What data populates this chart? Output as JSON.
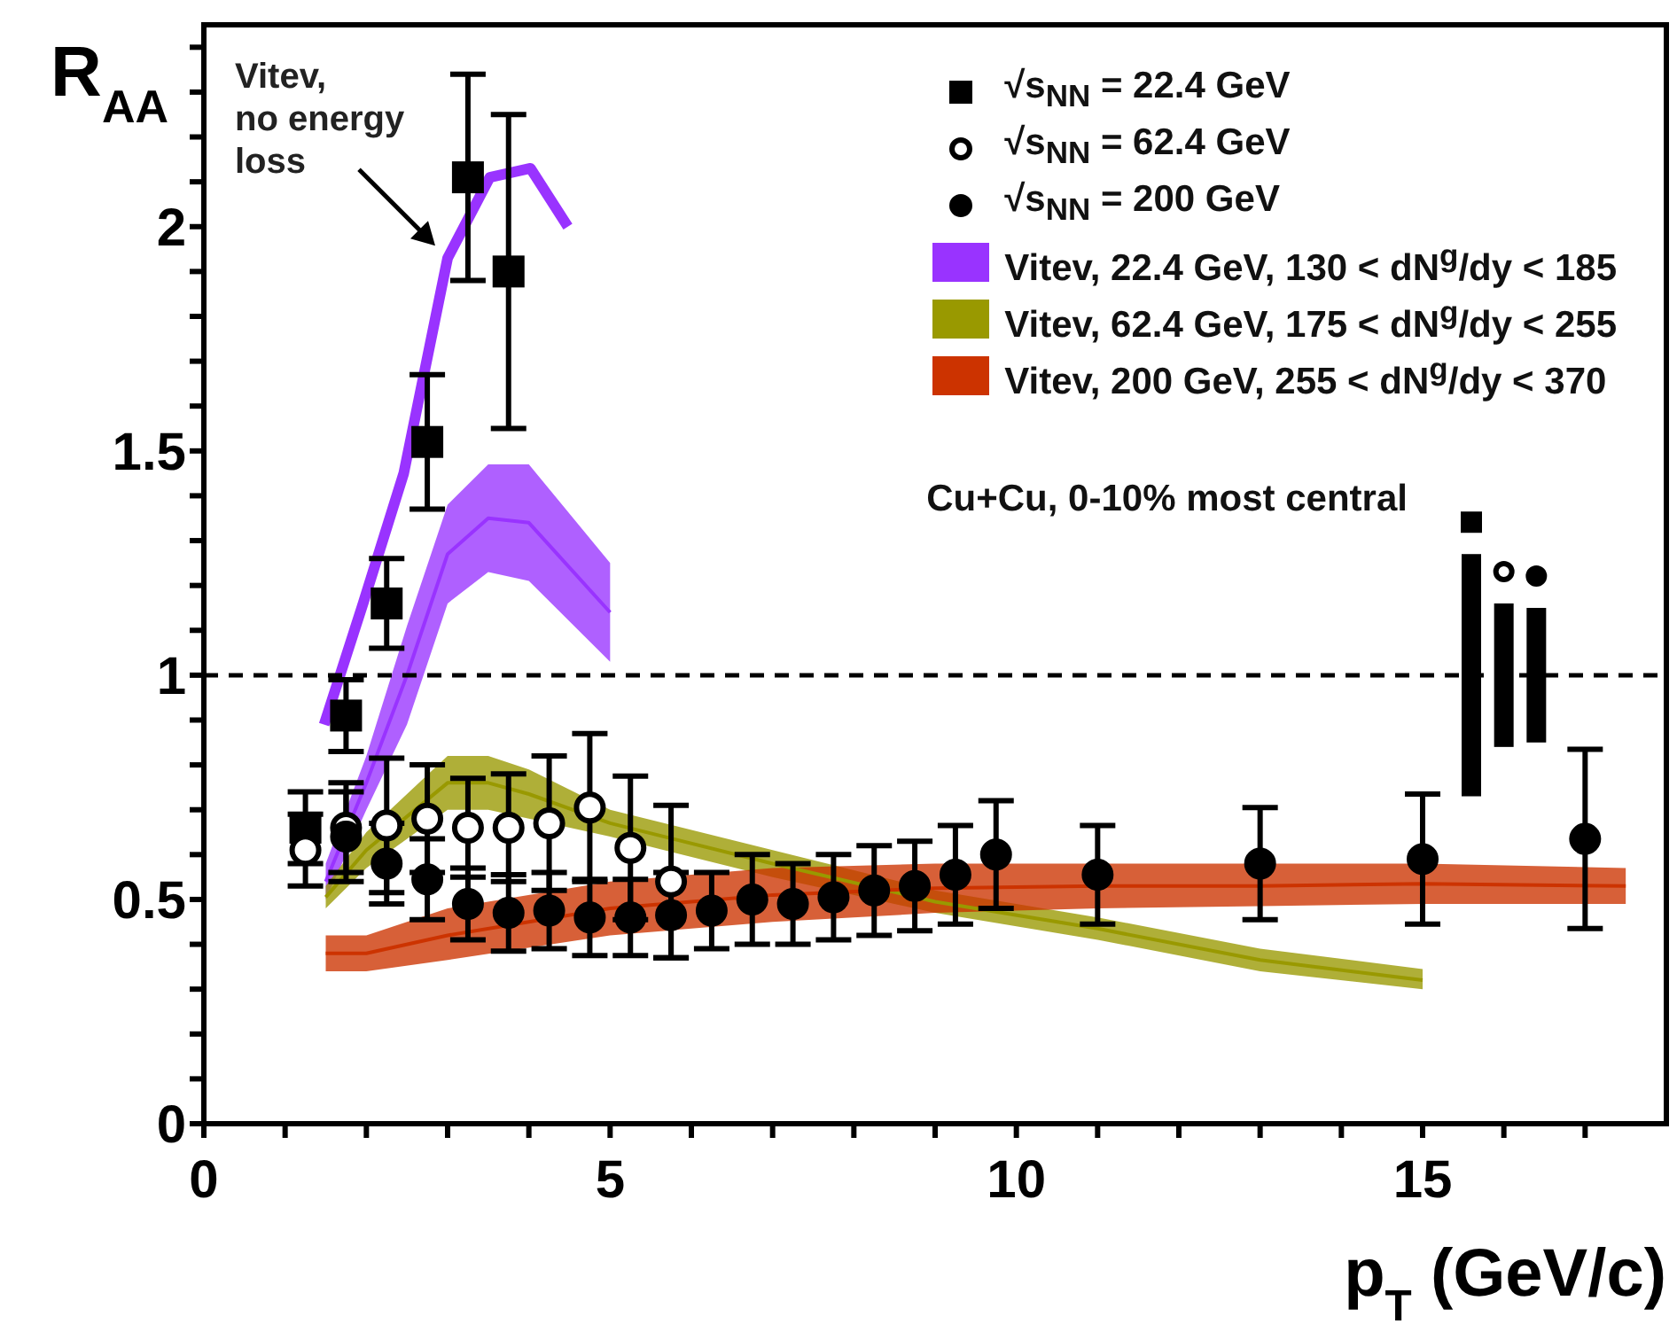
{
  "chart_data": {
    "type": "scatter",
    "xlabel": "p$_{T}$ (GeV/c)",
    "ylabel": "R$_{AA}$",
    "xlim": [
      0,
      18
    ],
    "ylim": [
      0,
      2.45
    ],
    "xticks": [
      0,
      {
        "value": 1,
        "label": null
      },
      {
        "value": 2,
        "label": null
      },
      {
        "value": 3,
        "label": null
      },
      {
        "value": 4,
        "label": null
      },
      5,
      {
        "value": 6,
        "label": null
      },
      {
        "value": 7,
        "label": null
      },
      {
        "value": 8,
        "label": null
      },
      {
        "value": 9,
        "label": null
      },
      10,
      {
        "value": 11,
        "label": null
      },
      {
        "value": 12,
        "label": null
      },
      {
        "value": 13,
        "label": null
      },
      {
        "value": 14,
        "label": null
      },
      15,
      {
        "value": 16,
        "label": null
      },
      {
        "value": 17,
        "label": null
      }
    ],
    "yticks": [
      0,
      {
        "value": 0.1,
        "label": null
      },
      {
        "value": 0.2,
        "label": null
      },
      {
        "value": 0.3,
        "label": null
      },
      {
        "value": 0.4,
        "label": null
      },
      0.5,
      {
        "value": 0.6,
        "label": null
      },
      {
        "value": 0.7,
        "label": null
      },
      {
        "value": 0.8,
        "label": null
      },
      {
        "value": 0.9,
        "label": null
      },
      1,
      {
        "value": 1.1,
        "label": null
      },
      {
        "value": 1.2,
        "label": null
      },
      {
        "value": 1.3,
        "label": null
      },
      {
        "value": 1.4,
        "label": null
      },
      1.5,
      {
        "value": 1.6,
        "label": null
      },
      {
        "value": 1.7,
        "label": null
      },
      {
        "value": 1.8,
        "label": null
      },
      {
        "value": 1.9,
        "label": null
      },
      2,
      {
        "value": 2.1,
        "label": null
      },
      {
        "value": 2.2,
        "label": null
      },
      {
        "value": 2.3,
        "label": null
      },
      {
        "value": 2.4,
        "label": null
      }
    ],
    "legend": "top right",
    "ref_lines": [
      {
        "axis": "y",
        "value": 1,
        "color": "#000000",
        "line_style": "dashed"
      }
    ],
    "annotations": [
      {
        "text": "Vitev, no energy loss",
        "x": 3.0,
        "y": 1.93
      },
      "Cu+Cu, 0-10% most central"
    ],
    "series": [
      {
        "name": "√s$_{NN}$ = 22.4 GeV",
        "marker": "square",
        "color": "#000000",
        "x": [
          1.25,
          1.75,
          2.25,
          2.75,
          3.25,
          3.75
        ],
        "values": [
          0.66,
          0.91,
          1.16,
          1.52,
          2.11,
          1.9
        ],
        "errors": [
          0.08,
          0.08,
          0.1,
          0.15,
          0.23,
          0.35
        ]
      },
      {
        "name": "√s$_{NN}$ = 62.4 GeV",
        "marker": "circle",
        "color": "#ffffff",
        "x": [
          1.25,
          1.75,
          2.25,
          2.75,
          3.25,
          3.75,
          4.25,
          4.75,
          5.25,
          5.75
        ],
        "values": [
          0.61,
          0.66,
          0.665,
          0.68,
          0.66,
          0.66,
          0.67,
          0.705,
          0.615,
          0.54
        ],
        "errors": [
          0.08,
          0.1,
          0.15,
          0.12,
          0.11,
          0.12,
          0.15,
          0.165,
          0.16,
          0.17
        ]
      },
      {
        "name": "√s$_{NN}$ = 200 GeV",
        "marker": "circle",
        "color": "#000000",
        "x": [
          1.75,
          2.25,
          2.75,
          3.25,
          3.75,
          4.25,
          4.75,
          5.25,
          5.75,
          6.25,
          6.75,
          7.25,
          7.75,
          8.25,
          8.75,
          9.25,
          9.75,
          11,
          13,
          15,
          17
        ],
        "values": [
          0.64,
          0.58,
          0.545,
          0.49,
          0.47,
          0.475,
          0.46,
          0.46,
          0.465,
          0.475,
          0.5,
          0.49,
          0.505,
          0.52,
          0.53,
          0.555,
          0.6,
          0.555,
          0.58,
          0.59,
          0.635
        ],
        "errors": [
          0.1,
          0.09,
          0.09,
          0.08,
          0.085,
          0.085,
          0.085,
          0.085,
          0.095,
          0.085,
          0.1,
          0.09,
          0.095,
          0.1,
          0.1,
          0.11,
          0.12,
          0.11,
          0.125,
          0.145,
          0.2
        ]
      },
      {
        "name": "Vitev, 22.4 GeV, 130 < dN$^{g}$/dy < 185",
        "type": "line",
        "color": "#9933ff",
        "x": [
          1.5,
          2,
          2.5,
          3,
          3.5,
          4,
          5
        ],
        "values": [
          0.54,
          0.76,
          1.0,
          1.27,
          1.35,
          1.34,
          1.14
        ],
        "lower": [
          0.5,
          0.7,
          0.89,
          1.16,
          1.23,
          1.21,
          1.03
        ],
        "upper": [
          0.58,
          0.82,
          1.11,
          1.38,
          1.47,
          1.47,
          1.25
        ]
      },
      {
        "name": "Vitev, 62.4 GeV, 175 < dN$^{g}$/dy < 255",
        "type": "line",
        "color": "#999900",
        "x": [
          1.5,
          2,
          3,
          3.5,
          4,
          5,
          7,
          9,
          11,
          13,
          15
        ],
        "values": [
          0.505,
          0.61,
          0.76,
          0.76,
          0.735,
          0.67,
          0.58,
          0.495,
          0.435,
          0.365,
          0.32
        ],
        "lower": [
          0.48,
          0.57,
          0.7,
          0.7,
          0.68,
          0.64,
          0.55,
          0.47,
          0.41,
          0.34,
          0.3
        ],
        "upper": [
          0.53,
          0.65,
          0.82,
          0.82,
          0.79,
          0.7,
          0.61,
          0.52,
          0.46,
          0.39,
          0.345
        ]
      },
      {
        "name": "Vitev, 200 GeV, 255 < dN$^{g}$/dy < 370",
        "type": "line",
        "color": "#cc3300",
        "x": [
          1.5,
          2,
          3,
          5,
          7,
          9,
          11,
          13,
          15,
          17.5
        ],
        "values": [
          0.38,
          0.38,
          0.42,
          0.48,
          0.51,
          0.525,
          0.53,
          0.53,
          0.535,
          0.53
        ],
        "lower": [
          0.34,
          0.34,
          0.365,
          0.42,
          0.45,
          0.47,
          0.48,
          0.485,
          0.49,
          0.49
        ],
        "upper": [
          0.42,
          0.42,
          0.48,
          0.54,
          0.57,
          0.58,
          0.58,
          0.58,
          0.58,
          0.57
        ]
      },
      {
        "type": "line",
        "color": "#9933ff",
        "x": [
          1.48,
          1.96,
          2.46,
          3.0,
          3.52,
          4.02,
          4.48
        ],
        "values": [
          0.89,
          1.16,
          1.45,
          1.93,
          2.11,
          2.13,
          2.0
        ]
      },
      {
        "type": "bar",
        "marker": "square",
        "color": "#000000",
        "x": [
          15.6
        ],
        "base": [
          0.73
        ],
        "values": [
          0.54
        ]
      },
      {
        "type": "bar",
        "marker": "circle",
        "color": "#000000",
        "x": [
          16.0
        ],
        "base": [
          0.84
        ],
        "values": [
          0.32
        ]
      },
      {
        "type": "bar",
        "marker": "circle",
        "color": "#000000",
        "x": [
          16.4
        ],
        "base": [
          0.85
        ],
        "values": [
          0.3
        ]
      }
    ]
  }
}
